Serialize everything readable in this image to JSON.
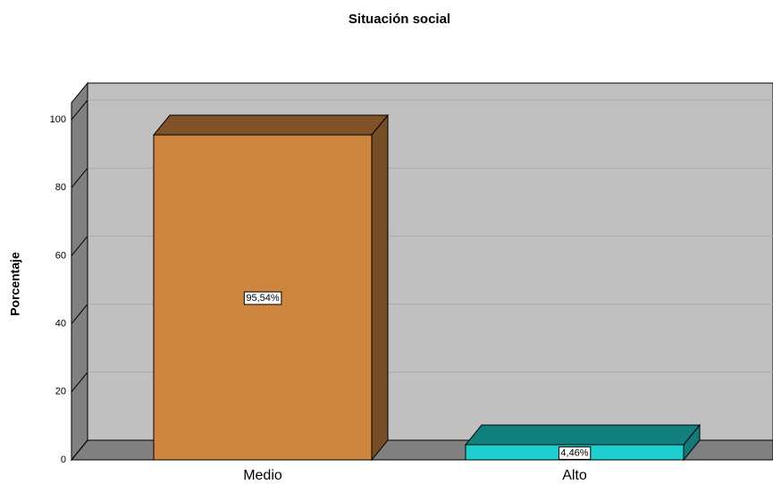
{
  "chart_data": {
    "type": "bar3d",
    "title": "Situación social",
    "ylabel": "Porcentaje",
    "categories": [
      "Medio",
      "Alto"
    ],
    "values": [
      95.54,
      4.46
    ],
    "value_labels": [
      "95,54%",
      "4,46%"
    ],
    "colors": [
      "#cd853f",
      "#1fcfcf"
    ],
    "ylim": [
      0,
      105
    ],
    "yticks": [
      0,
      20,
      40,
      60,
      80,
      100
    ],
    "grid": true
  }
}
